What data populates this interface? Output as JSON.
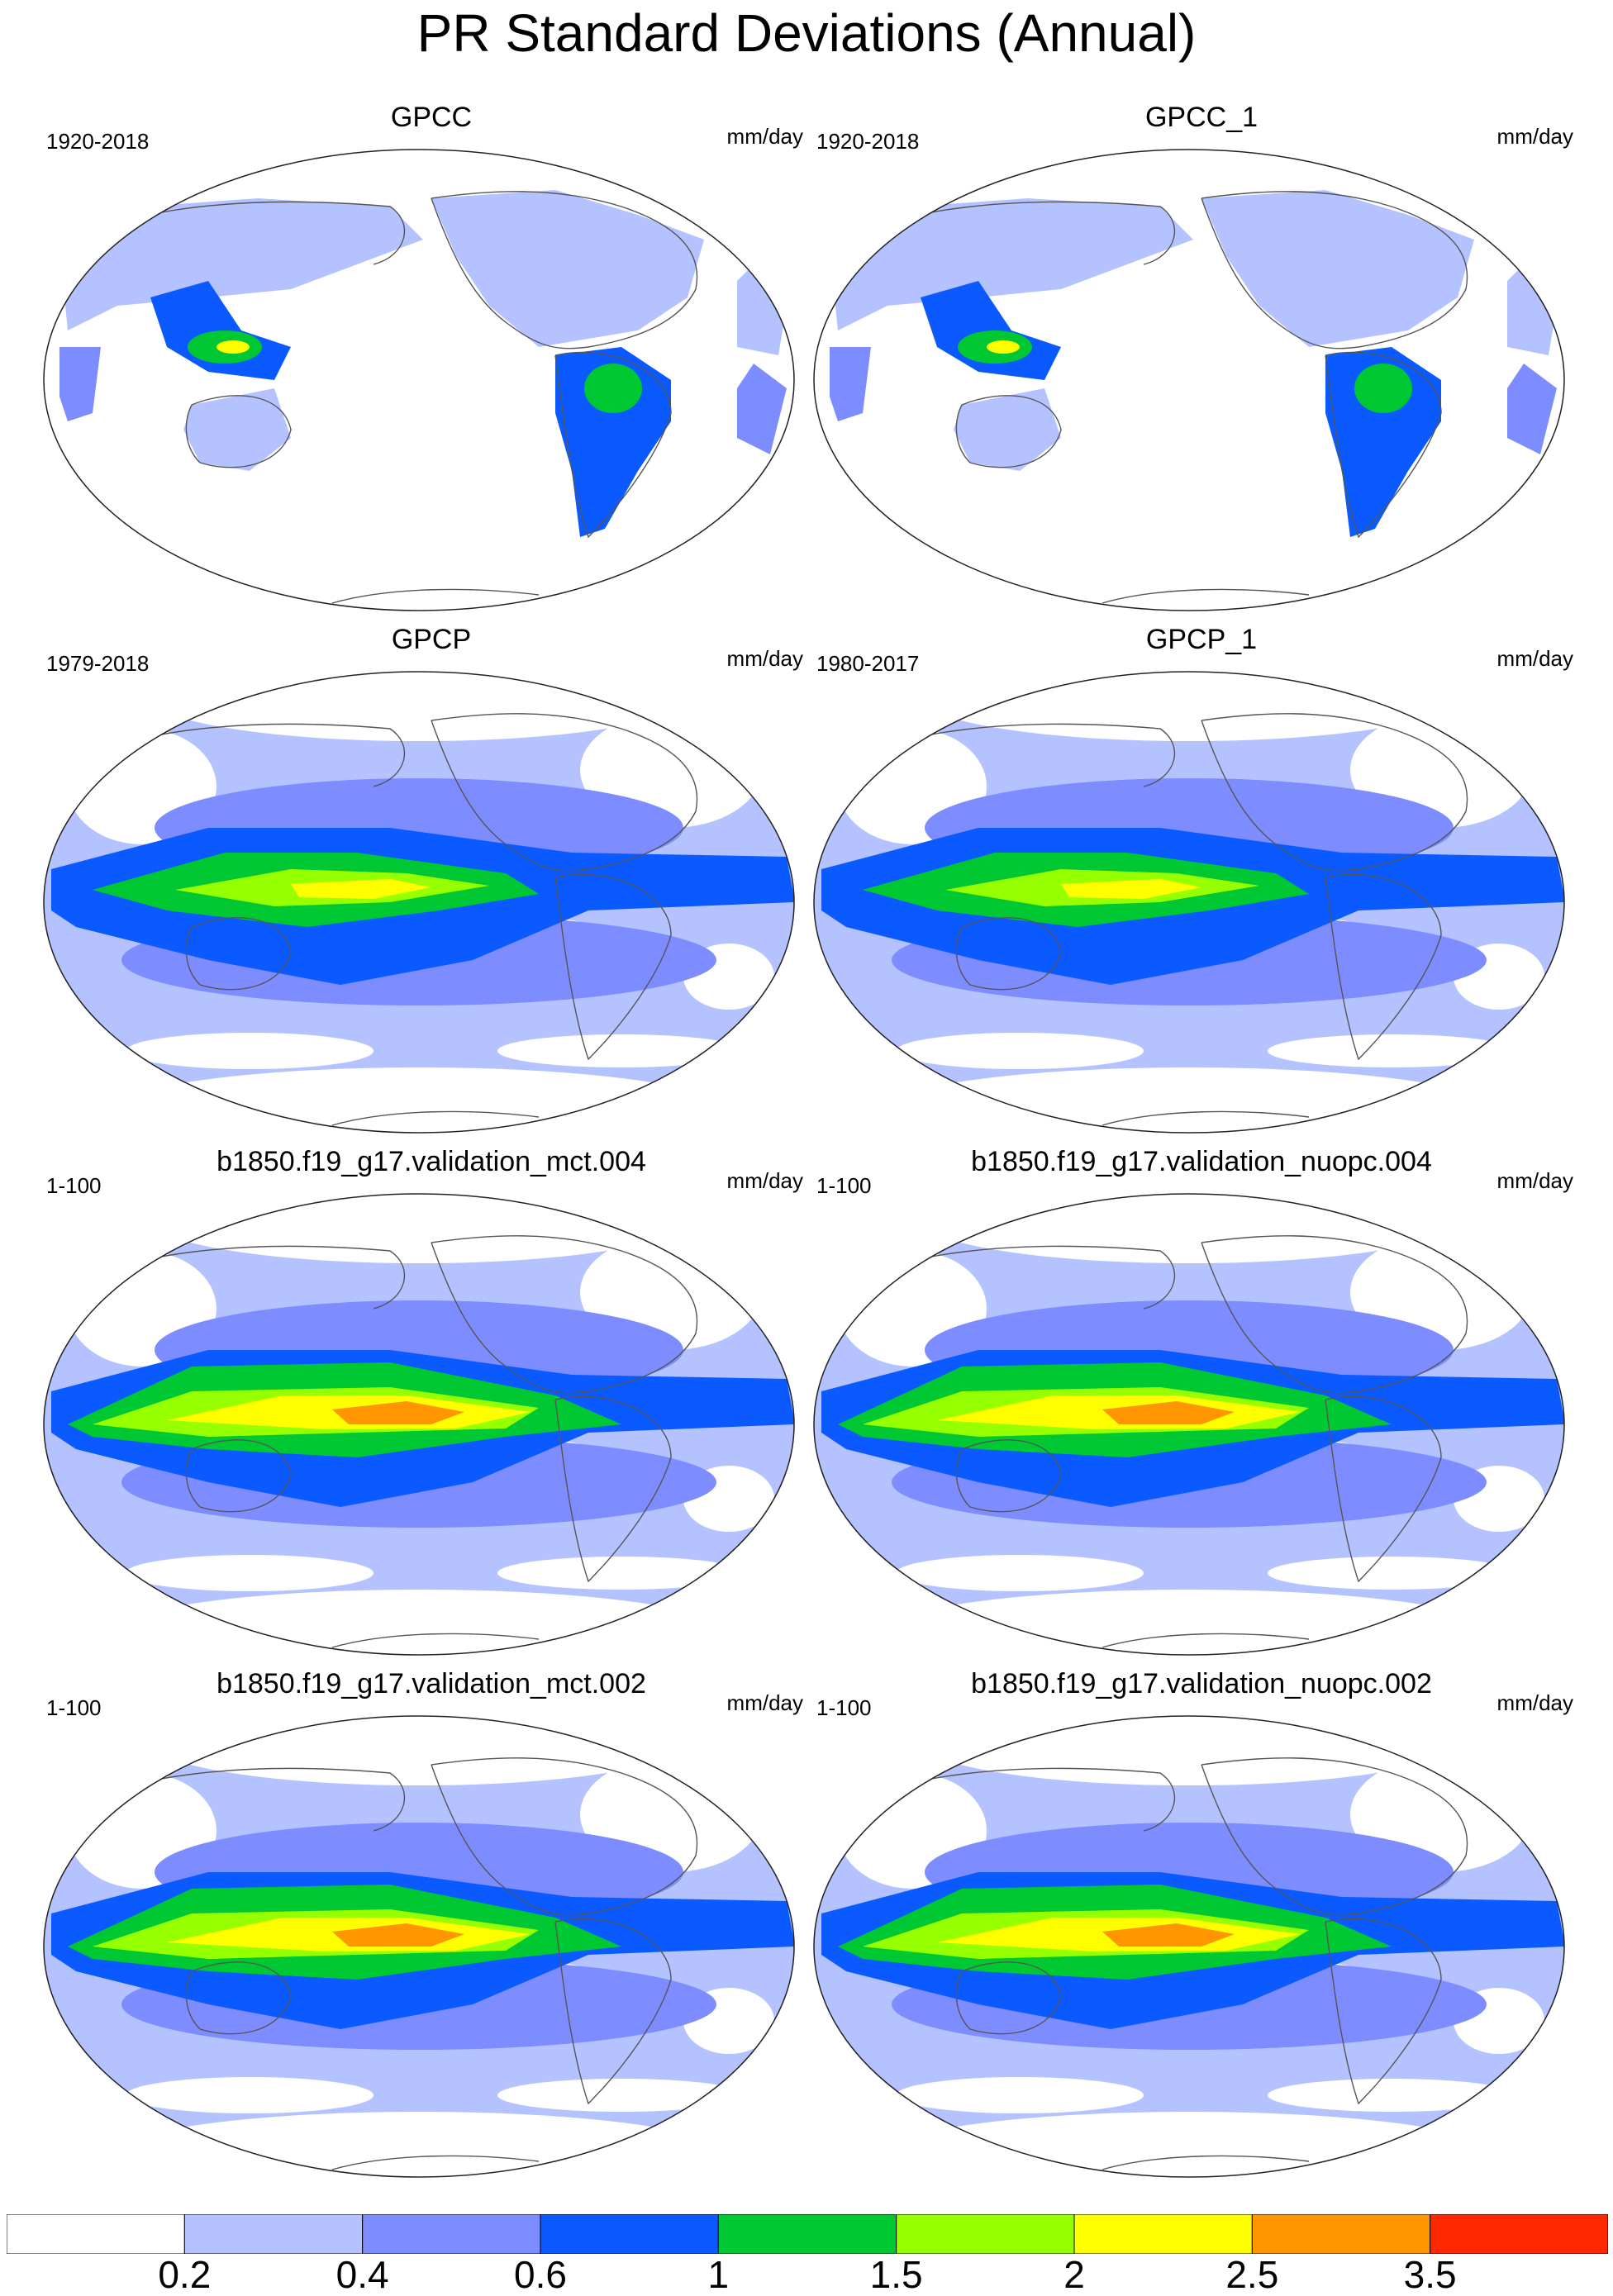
{
  "title": "PR Standard Deviations (Annual)",
  "units": "mm/day",
  "panels": [
    {
      "title": "GPCC",
      "years": "1920-2018",
      "style": "land"
    },
    {
      "title": "GPCC_1",
      "years": "1920-2018",
      "style": "land"
    },
    {
      "title": "GPCP",
      "years": "1979-2018",
      "style": "obs"
    },
    {
      "title": "GPCP_1",
      "years": "1980-2017",
      "style": "obs"
    },
    {
      "title": "b1850.f19_g17.validation_mct.004",
      "years": "1-100",
      "style": "model"
    },
    {
      "title": "b1850.f19_g17.validation_nuopc.004",
      "years": "1-100",
      "style": "model"
    },
    {
      "title": "b1850.f19_g17.validation_mct.002",
      "years": "1-100",
      "style": "model"
    },
    {
      "title": "b1850.f19_g17.validation_nuopc.002",
      "years": "1-100",
      "style": "model"
    }
  ],
  "colorbar": {
    "colors": [
      "#ffffff",
      "#b4c3ff",
      "#7d8cff",
      "#0a5aff",
      "#00c832",
      "#96ff00",
      "#ffff00",
      "#ff9600",
      "#ff2800"
    ],
    "labels": [
      "0.2",
      "0.4",
      "0.6",
      "1",
      "1.5",
      "2",
      "2.5",
      "3.5"
    ]
  }
}
